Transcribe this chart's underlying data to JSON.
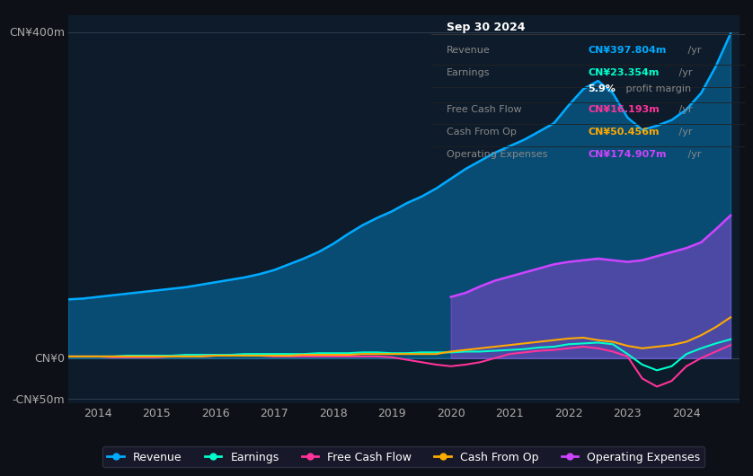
{
  "background_color": "#0d1117",
  "plot_bg_color": "#0d1b2a",
  "ylabel_400": "CN¥400m",
  "ylabel_0": "CN¥0",
  "ylabel_neg50": "-CN¥50m",
  "revenue_color": "#00aaff",
  "earnings_color": "#00ffcc",
  "fcf_color": "#ff3399",
  "cashop_color": "#ffaa00",
  "opex_color": "#cc44ff",
  "info_box": {
    "bg": "#000000",
    "title": "Sep 30 2024",
    "rows": [
      {
        "label": "Revenue",
        "value": "CN¥397.804m",
        "unit": " /yr",
        "color": "#00aaff"
      },
      {
        "label": "Earnings",
        "value": "CN¥23.354m",
        "unit": " /yr",
        "color": "#00ffcc"
      },
      {
        "label": "",
        "value": "5.9%",
        "unit": " profit margin",
        "color": "#ffffff"
      },
      {
        "label": "Free Cash Flow",
        "value": "CN¥16.193m",
        "unit": " /yr",
        "color": "#ff3399"
      },
      {
        "label": "Cash From Op",
        "value": "CN¥50.456m",
        "unit": " /yr",
        "color": "#ffaa00"
      },
      {
        "label": "Operating Expenses",
        "value": "CN¥174.907m",
        "unit": " /yr",
        "color": "#cc44ff"
      }
    ]
  },
  "legend_items": [
    {
      "label": "Revenue",
      "color": "#00aaff"
    },
    {
      "label": "Earnings",
      "color": "#00ffcc"
    },
    {
      "label": "Free Cash Flow",
      "color": "#ff3399"
    },
    {
      "label": "Cash From Op",
      "color": "#ffaa00"
    },
    {
      "label": "Operating Expenses",
      "color": "#cc44ff"
    }
  ]
}
